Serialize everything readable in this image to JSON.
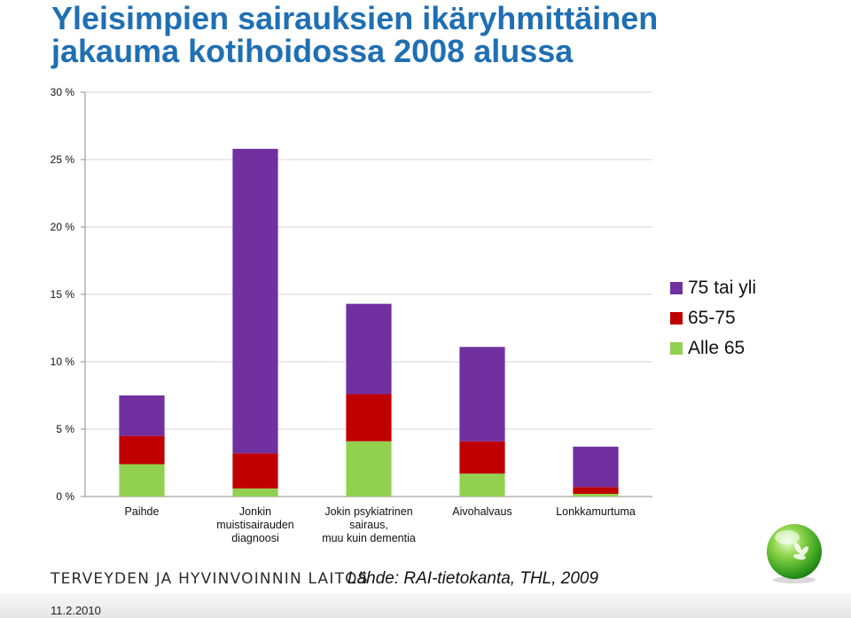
{
  "title": {
    "line1": "Yleisimpien sairauksien ikäryhmittäinen",
    "line2": "jakauma kotihoidossa 2008 alussa"
  },
  "chart_data": {
    "type": "bar",
    "stacked": true,
    "title": "Yleisimpien sairauksien ikäryhmittäinen jakauma kotihoidossa 2008 alussa",
    "categories": [
      [
        "Paihde"
      ],
      [
        "Jonkin",
        "muistisairauden",
        "diagnoosi"
      ],
      [
        "Jokin psykiatrinen",
        "sairaus,",
        "muu kuin dementia"
      ],
      [
        "Aivohalvaus"
      ],
      [
        "Lonkkamurtuma"
      ]
    ],
    "series": [
      {
        "name": "Alle 65",
        "color": "#92d050",
        "values": [
          2.4,
          0.6,
          4.1,
          1.7,
          0.2
        ]
      },
      {
        "name": "65-75",
        "color": "#c00000",
        "values": [
          2.1,
          2.6,
          3.5,
          2.4,
          0.5
        ]
      },
      {
        "name": "75 tai yli",
        "color": "#7030a0",
        "values": [
          3.0,
          22.6,
          6.7,
          7.0,
          3.0
        ]
      }
    ],
    "yticks": [
      "0 %",
      "5 %",
      "10 %",
      "15 %",
      "20 %",
      "25 %",
      "30 %"
    ],
    "ylim": [
      0,
      30
    ],
    "grid": true,
    "legend_position": "right",
    "legend_order": [
      "75 tai yli",
      "65-75",
      "Alle 65"
    ]
  },
  "footer": {
    "org": "TERVEYDEN JA HYVINVOINNIN LAITOS",
    "source": "Lähde: RAI-tietokanta, THL, 2009",
    "date": "11.2.2010"
  },
  "logo": {
    "icon": "thl-green-sphere-logo"
  }
}
